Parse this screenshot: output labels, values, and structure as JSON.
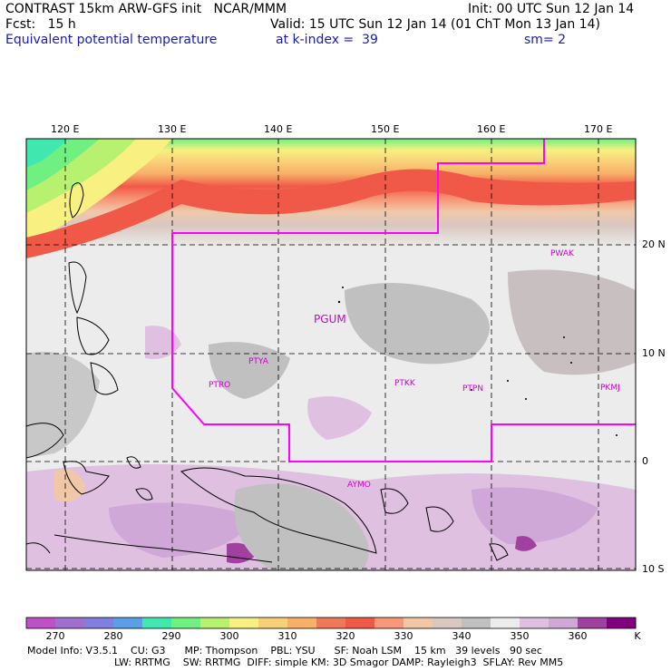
{
  "header": {
    "line1_left": "CONTRAST 15km ARW-GFS init   NCAR/MMM",
    "line1_right": "Init: 00 UTC Sun 12 Jan 14",
    "line2_left": "Fcst:   15 h",
    "line2_right": "Valid: 15 UTC Sun 12 Jan 14 (01 ChT Mon 13 Jan 14)",
    "line3_left": "Equivalent potential temperature",
    "line3_mid": "at k-index =  39",
    "line3_right": "sm= 2"
  },
  "lon_ticks": [
    "120 E",
    "130 E",
    "140 E",
    "150 E",
    "160 E",
    "170 E"
  ],
  "lat_ticks": [
    "20 N",
    "10 N",
    "0",
    "10 S"
  ],
  "stations": [
    "PWAK",
    "PGUM",
    "PTYA",
    "PTRO",
    "PTKK",
    "PTPN",
    "PKMJ",
    "AYMO"
  ],
  "colorbar": {
    "labels": [
      "270",
      "280",
      "290",
      "300",
      "310",
      "320",
      "330",
      "340",
      "350",
      "360"
    ],
    "unit": "K",
    "colors": [
      "#c050c8",
      "#a070d0",
      "#8080e0",
      "#5aa0e8",
      "#40e8b0",
      "#70f080",
      "#b8f070",
      "#f8f080",
      "#f8d078",
      "#f8b068",
      "#f07858",
      "#f05848",
      "#f89878",
      "#f0c8a8",
      "#d8c8c0",
      "#c0c0c0",
      "#ececec",
      "#e0c0e0",
      "#d0a8d8",
      "#a040a0",
      "#800080"
    ]
  },
  "footer": {
    "line1": "Model Info: V3.5.1    CU: G3      MP: Thompson    PBL: YSU      SF: Noah LSM    15 km   39 levels   90 sec",
    "line2": "LW: RRTMG    SW: RRTMG  DIFF: simple KM: 3D Smagor DAMP: Rayleigh3  SFLAY: Rev MM5"
  }
}
